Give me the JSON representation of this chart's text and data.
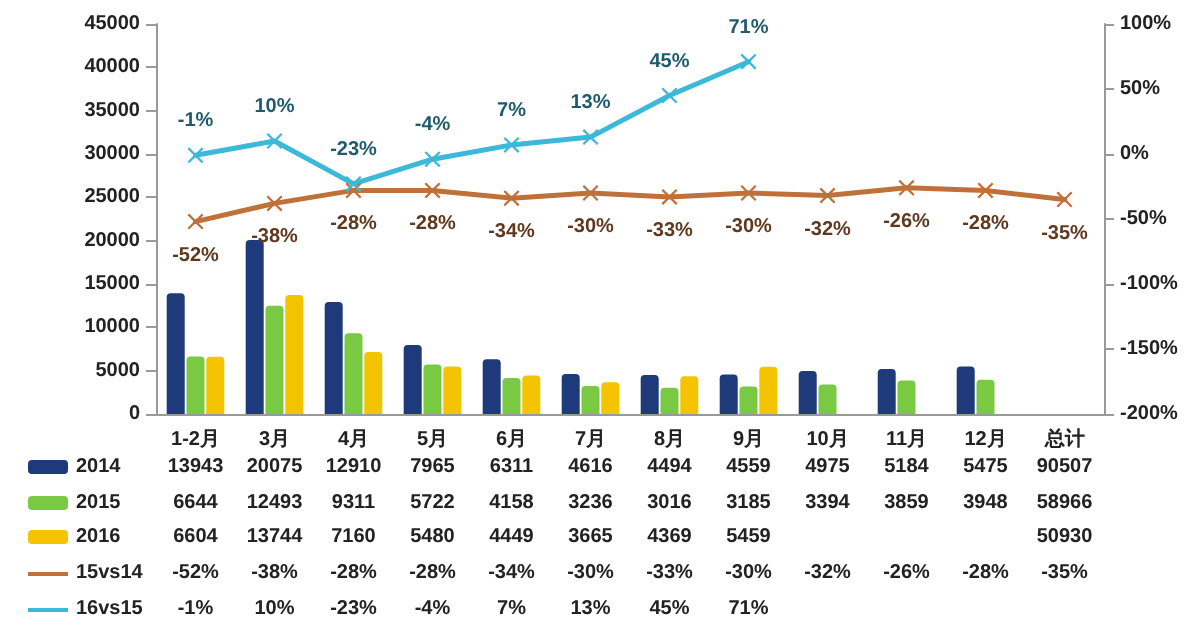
{
  "chart_data": {
    "type": "bar",
    "categories": [
      "1-2月",
      "3月",
      "4月",
      "5月",
      "6月",
      "7月",
      "8月",
      "9月",
      "10月",
      "11月",
      "12月",
      "总计"
    ],
    "series": [
      {
        "name": "2014",
        "color": "#1f3a7a",
        "values": [
          13943,
          20075,
          12910,
          7965,
          6311,
          4616,
          4494,
          4559,
          4975,
          5184,
          5475,
          null
        ],
        "value_labels": [
          "13943",
          "20075",
          "12910",
          "7965",
          "6311",
          "4616",
          "4494",
          "4559",
          "4975",
          "5184",
          "5475",
          "90507"
        ]
      },
      {
        "name": "2015",
        "color": "#7ac943",
        "values": [
          6644,
          12493,
          9311,
          5722,
          4158,
          3236,
          3016,
          3185,
          3394,
          3859,
          3948,
          null
        ],
        "value_labels": [
          "6644",
          "12493",
          "9311",
          "5722",
          "4158",
          "3236",
          "3016",
          "3185",
          "3394",
          "3859",
          "3948",
          "58966"
        ]
      },
      {
        "name": "2016",
        "color": "#f5c400",
        "values": [
          6604,
          13744,
          7160,
          5480,
          4449,
          3665,
          4369,
          5459,
          null,
          null,
          null,
          null
        ],
        "value_labels": [
          "6604",
          "13744",
          "7160",
          "5480",
          "4449",
          "3665",
          "4369",
          "5459",
          null,
          null,
          null,
          "50930"
        ]
      },
      {
        "name": "15vs14",
        "type": "line",
        "axis": "y2",
        "color": "#c0703a",
        "values": [
          -52,
          -38,
          -28,
          -28,
          -34,
          -30,
          -33,
          -30,
          -32,
          -26,
          -28,
          -35
        ],
        "value_labels": [
          "-52%",
          "-38%",
          "-28%",
          "-28%",
          "-34%",
          "-30%",
          "-33%",
          "-30%",
          "-32%",
          "-26%",
          "-28%",
          "-35%"
        ]
      },
      {
        "name": "16vs15",
        "type": "line",
        "axis": "y2",
        "color": "#3cb8d8",
        "values": [
          -1,
          10,
          -23,
          -4,
          7,
          13,
          45,
          71,
          null,
          null,
          null,
          null
        ],
        "value_labels": [
          "-1%",
          "10%",
          "-23%",
          "-4%",
          "7%",
          "13%",
          "45%",
          "71%",
          null,
          null,
          null,
          null
        ]
      }
    ],
    "ylim": [
      0,
      45000
    ],
    "yticks": [
      0,
      5000,
      10000,
      15000,
      20000,
      25000,
      30000,
      35000,
      40000,
      45000
    ],
    "y2lim": [
      -200,
      100
    ],
    "y2ticks": [
      {
        "value": -200,
        "label": "-200%"
      },
      {
        "value": -150,
        "label": "-150%"
      },
      {
        "value": -100,
        "label": "-100%"
      },
      {
        "value": -50,
        "label": "-50%"
      },
      {
        "value": 0,
        "label": "0%"
      },
      {
        "value": 50,
        "label": "50%"
      },
      {
        "value": 100,
        "label": "100%"
      }
    ],
    "grid": false,
    "legend": "bottom left",
    "marker": "cross"
  }
}
